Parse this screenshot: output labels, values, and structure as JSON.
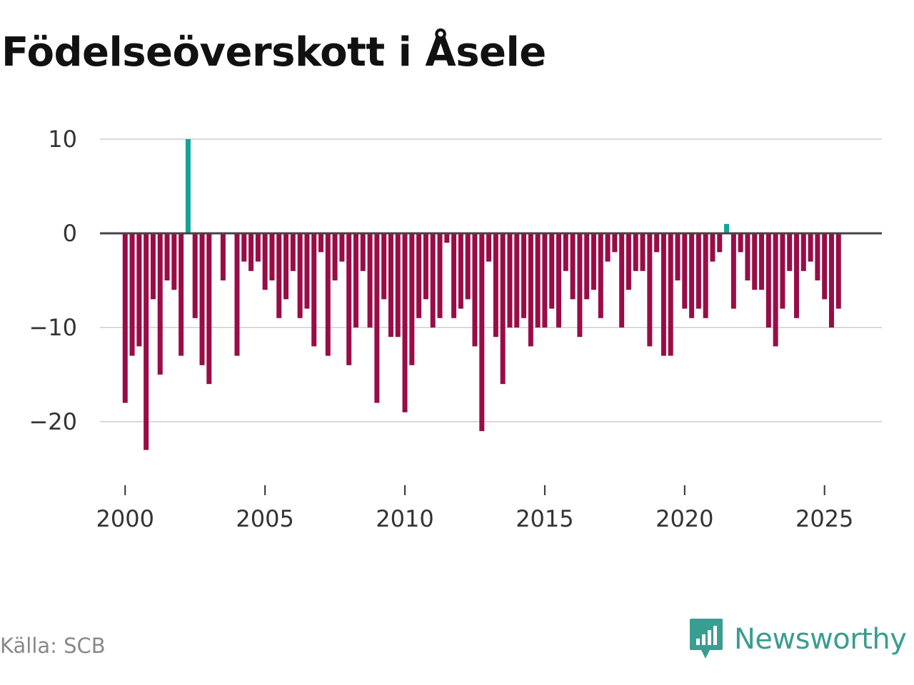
{
  "title": "Födelseöverskott i Åsele",
  "source": "Källa: SCB",
  "brand": {
    "name": "Newsworthy",
    "icon": "newsworthy-logo-icon"
  },
  "colors": {
    "positive": "#14a39a",
    "negative": "#990c47",
    "grid": "#d9d9d9",
    "zero_line": "#444444",
    "brand": "#3a9d91"
  },
  "chart_data": {
    "type": "bar",
    "title": "Födelseöverskott i Åsele",
    "xlabel": "",
    "ylabel": "",
    "frequency": "quarterly",
    "x_start": 2000.0,
    "x_step": 0.25,
    "xlim": [
      1999.1,
      2027.05
    ],
    "ylim": [
      -25,
      12
    ],
    "yticks": [
      10,
      0,
      -10,
      -20
    ],
    "ytick_labels": [
      "10",
      "0",
      "−10",
      "−20"
    ],
    "xticks": [
      2000,
      2005,
      2010,
      2015,
      2020,
      2025
    ],
    "xtick_labels": [
      "2000",
      "2005",
      "2010",
      "2015",
      "2020",
      "2025"
    ],
    "grid": true,
    "series": [
      {
        "name": "Födelseöverskott",
        "values": [
          -18,
          -13,
          -12,
          -23,
          -7,
          -15,
          -5,
          -6,
          -13,
          10,
          -9,
          -14,
          -16,
          0,
          -5,
          0,
          -13,
          -3,
          -4,
          -3,
          -6,
          -5,
          -9,
          -7,
          -4,
          -9,
          -8,
          -12,
          -2,
          -13,
          -5,
          -3,
          -14,
          -10,
          -4,
          -10,
          -18,
          -7,
          -11,
          -11,
          -19,
          -14,
          -9,
          -7,
          -10,
          -9,
          -1,
          -9,
          -8,
          -7,
          -12,
          -21,
          -3,
          -11,
          -16,
          -10,
          -10,
          -9,
          -12,
          -10,
          -10,
          -8,
          -10,
          -4,
          -7,
          -11,
          -7,
          -6,
          -9,
          -3,
          -2,
          -10,
          -6,
          -4,
          -4,
          -12,
          -2,
          -13,
          -13,
          -5,
          -8,
          -9,
          -8,
          -9,
          -3,
          -2,
          1,
          -8,
          -2,
          -5,
          -6,
          -6,
          -10,
          -12,
          -8,
          -4,
          -9,
          -4,
          -3,
          -5,
          -7,
          -10,
          -8
        ]
      }
    ]
  }
}
